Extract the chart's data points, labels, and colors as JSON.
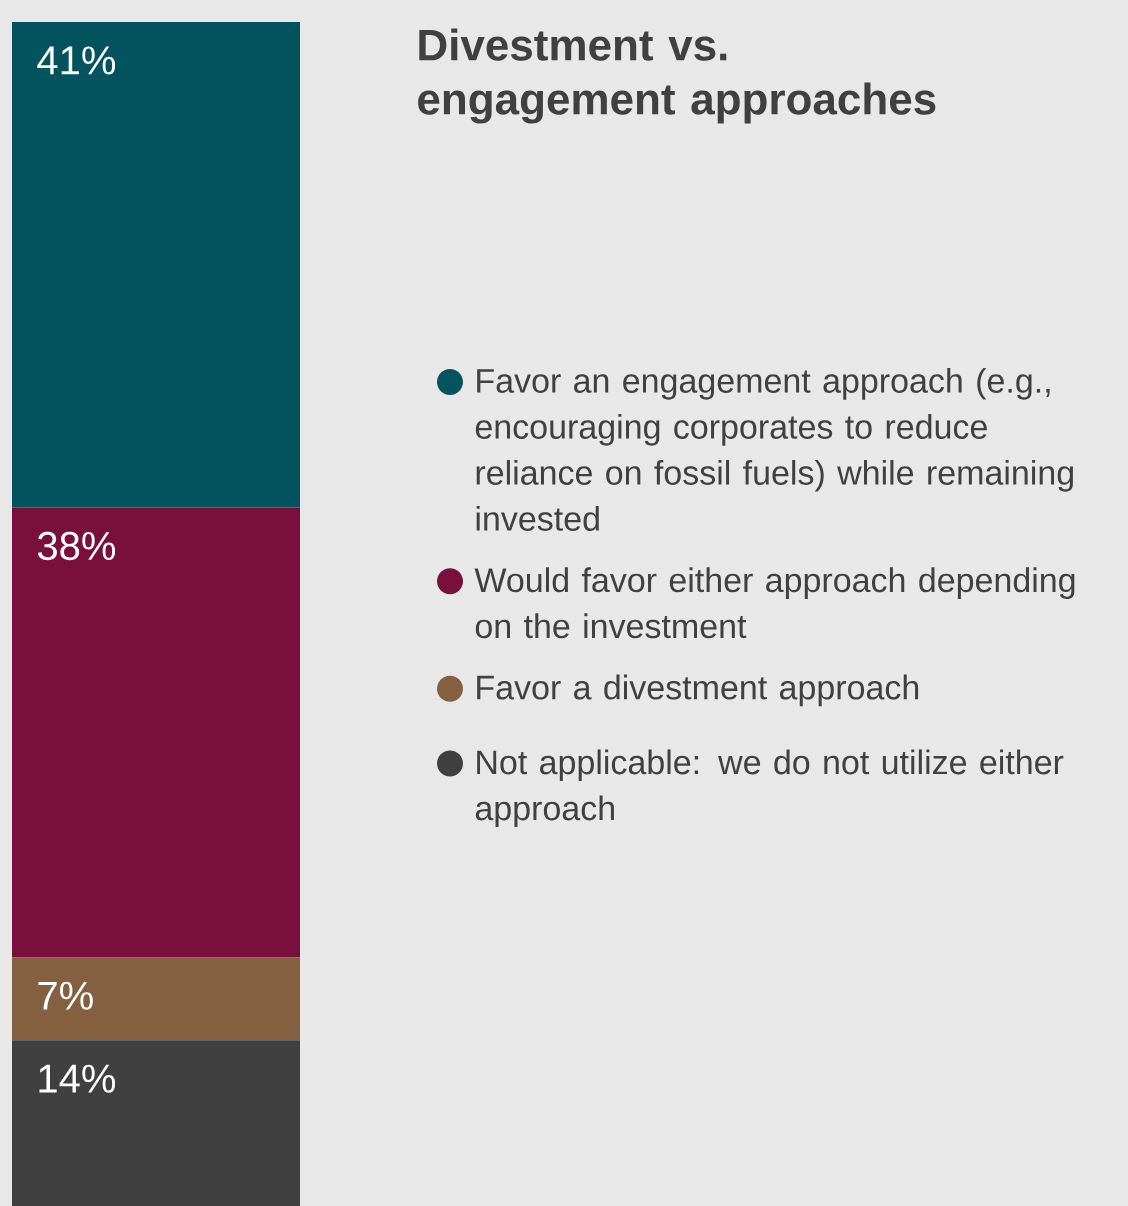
{
  "chart_data": {
    "type": "bar",
    "title": "Divestment vs. engagement approaches",
    "stacked": true,
    "legend": "right",
    "categories": [
      null
    ],
    "series": [
      {
        "name": "Not applicable: we do not utilize either approach",
        "color": "#404040",
        "values": [
          14
        ],
        "value_labels": [
          "14%"
        ]
      },
      {
        "name": "Favor a divestment approach",
        "color": "#845f40",
        "values": [
          7
        ],
        "value_labels": [
          "7%"
        ]
      },
      {
        "name": "Would favor either approach depending on the investment",
        "color": "#79103c",
        "values": [
          38
        ],
        "value_labels": [
          "38%"
        ]
      },
      {
        "name": "Favor an engagement approach (e.g., encouraging corporates to reduce reliance on fossil fuels) while remaining invested",
        "color": "#02535e",
        "values": [
          41
        ],
        "value_labels": [
          "41%"
        ]
      }
    ]
  }
}
